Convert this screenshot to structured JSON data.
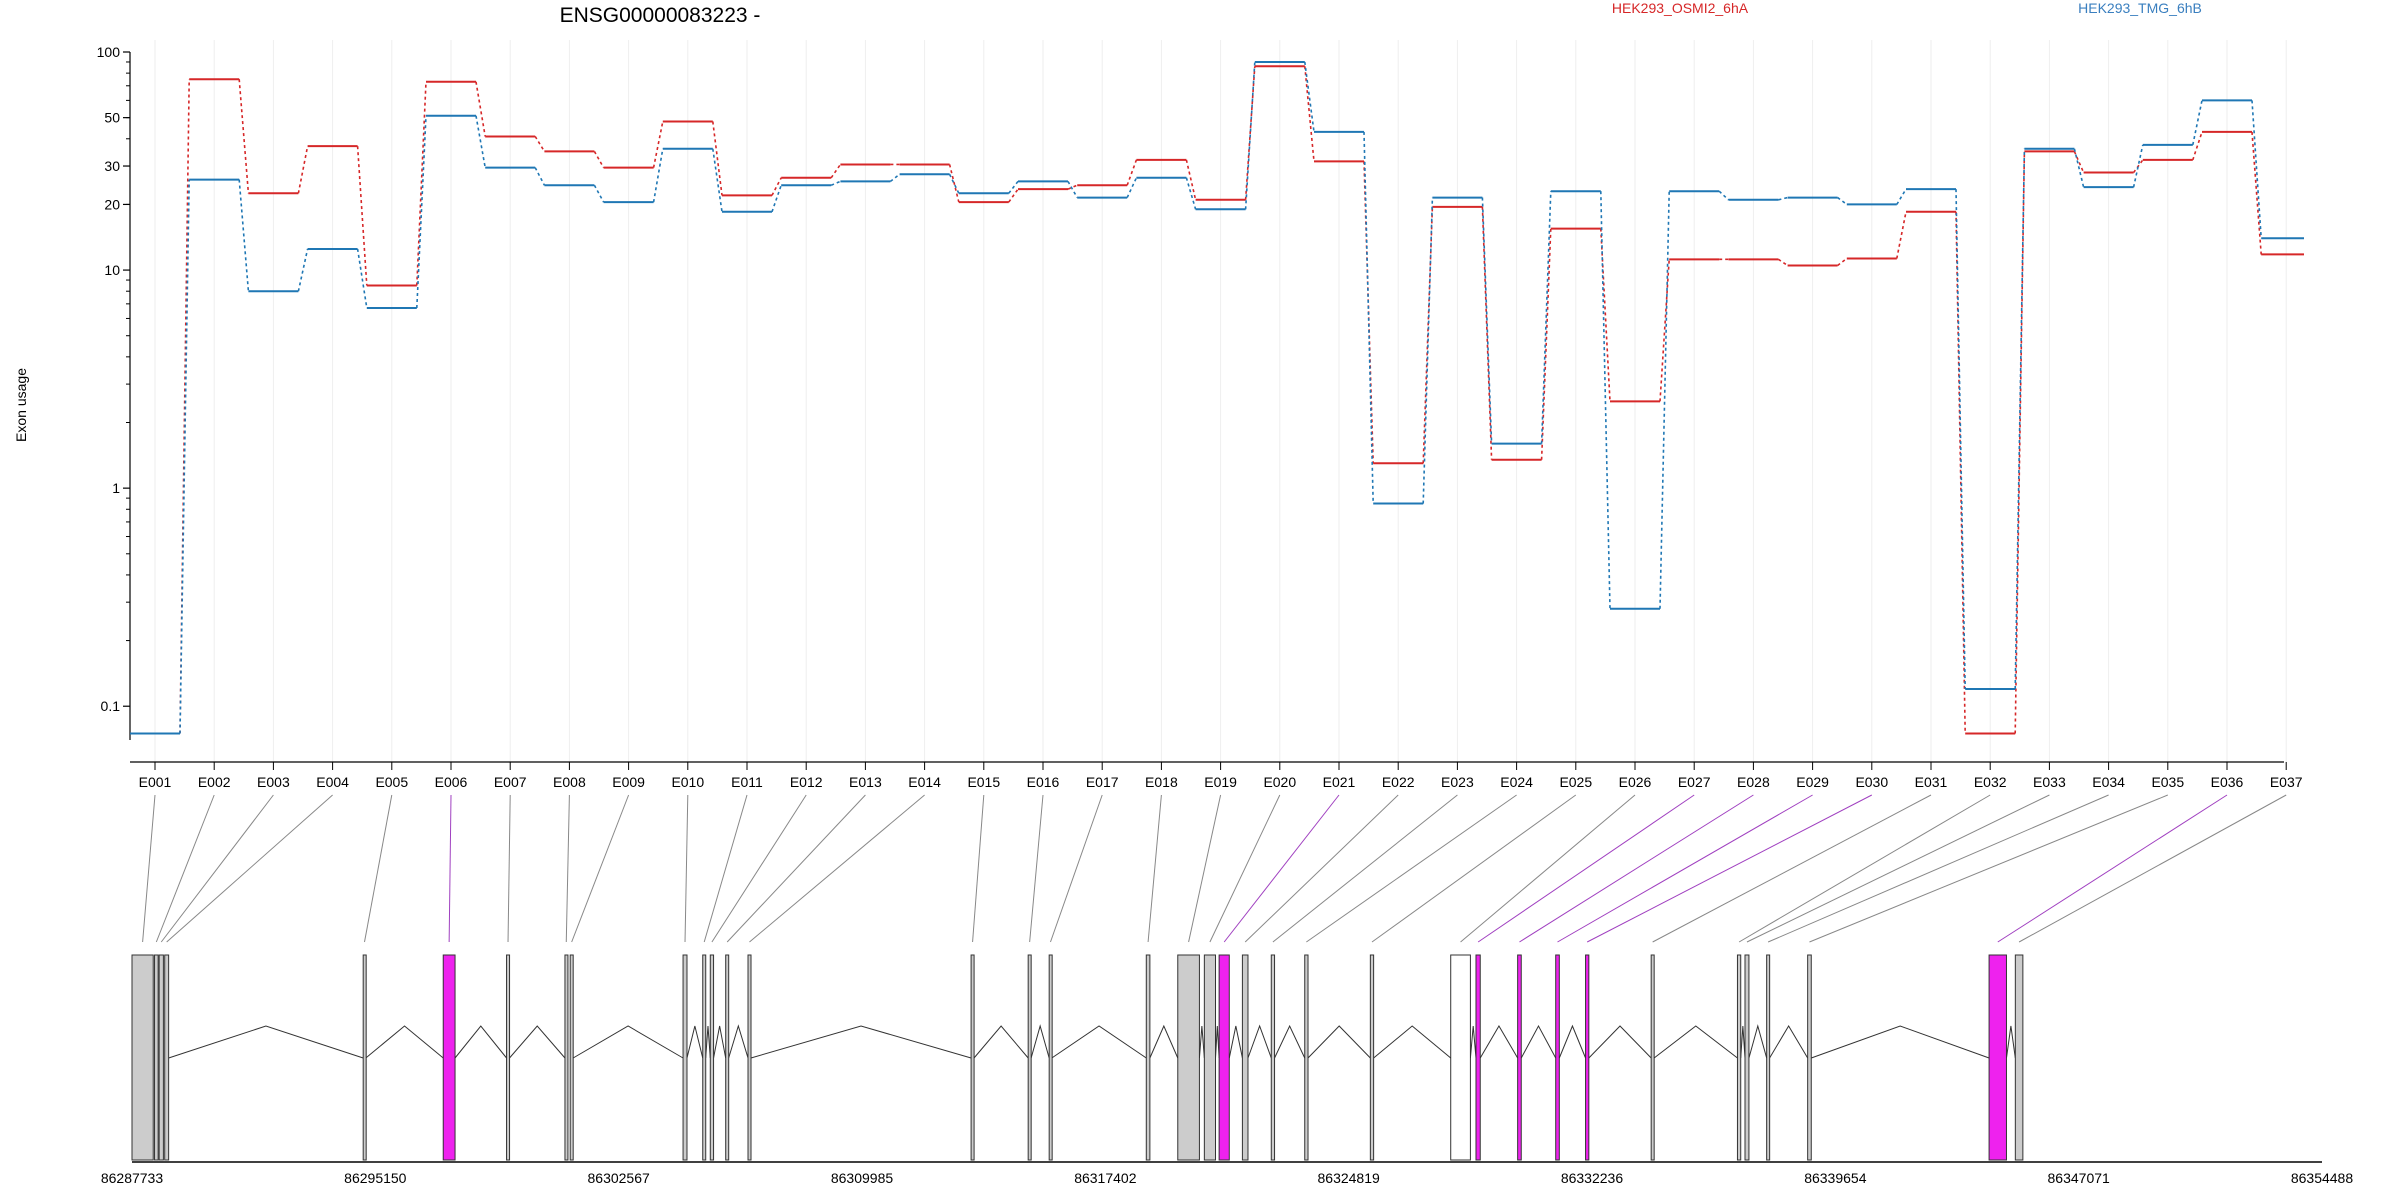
{
  "chart_data": {
    "type": "line",
    "title": "ENSG00000083223 -",
    "ylabel": "Exon usage",
    "yscale": "log",
    "ylim": [
      0.07,
      100
    ],
    "yticks": [
      "0.1",
      "1",
      "10",
      "20",
      "30",
      "50",
      "100"
    ],
    "grid": true,
    "legend_position": "top-right",
    "colors": {
      "series_1": "#d62728",
      "series_2": "#1f77b4",
      "highlight": "#ee22ee",
      "exon_fill": "#cccccc",
      "link": "#888888"
    },
    "categories": [
      "E001",
      "E002",
      "E003",
      "E004",
      "E005",
      "E006",
      "E007",
      "E008",
      "E009",
      "E010",
      "E011",
      "E012",
      "E013",
      "E014",
      "E015",
      "E016",
      "E017",
      "E018",
      "E019",
      "E020",
      "E021",
      "E022",
      "E023",
      "E024",
      "E025",
      "E026",
      "E027",
      "E028",
      "E029",
      "E030",
      "E031",
      "E032",
      "E033",
      "E034",
      "E035",
      "E036",
      "E037"
    ],
    "series": [
      {
        "name": "HEK293_OSMI2_6hA",
        "color": "#d62728",
        "values": [
          0.075,
          75,
          22.5,
          37,
          8.5,
          73,
          41,
          35,
          29.5,
          48,
          22,
          26.5,
          30.5,
          30.5,
          20.5,
          23.5,
          24.5,
          32,
          21,
          86,
          31.5,
          1.3,
          19.5,
          1.35,
          15.5,
          2.5,
          11.2,
          11.2,
          10.5,
          11.3,
          18.5,
          0.075,
          35,
          28,
          32,
          43,
          11.8
        ]
      },
      {
        "name": "HEK293_TMG_6hB",
        "color": "#1f77b4",
        "values": [
          0.075,
          26,
          8,
          12.5,
          6.7,
          51,
          29.5,
          24.5,
          20.5,
          36,
          18.5,
          24.5,
          25.5,
          27.5,
          22.5,
          25.5,
          21.5,
          26.5,
          19,
          90,
          43,
          0.85,
          21.5,
          1.6,
          23,
          0.28,
          23,
          21,
          21.5,
          20,
          23.5,
          0.12,
          36,
          24,
          37.5,
          60,
          14
        ]
      }
    ],
    "highlighted_exons": [
      "E006",
      "E021",
      "E027",
      "E028",
      "E029",
      "E030",
      "E036"
    ],
    "genomic_axis": {
      "range": [
        86287733,
        86354488
      ],
      "ticks": [
        "86287733",
        "86295150",
        "86302567",
        "86309985",
        "86317402",
        "86324819",
        "86332236",
        "86339654",
        "86347071",
        "86354488"
      ]
    }
  }
}
